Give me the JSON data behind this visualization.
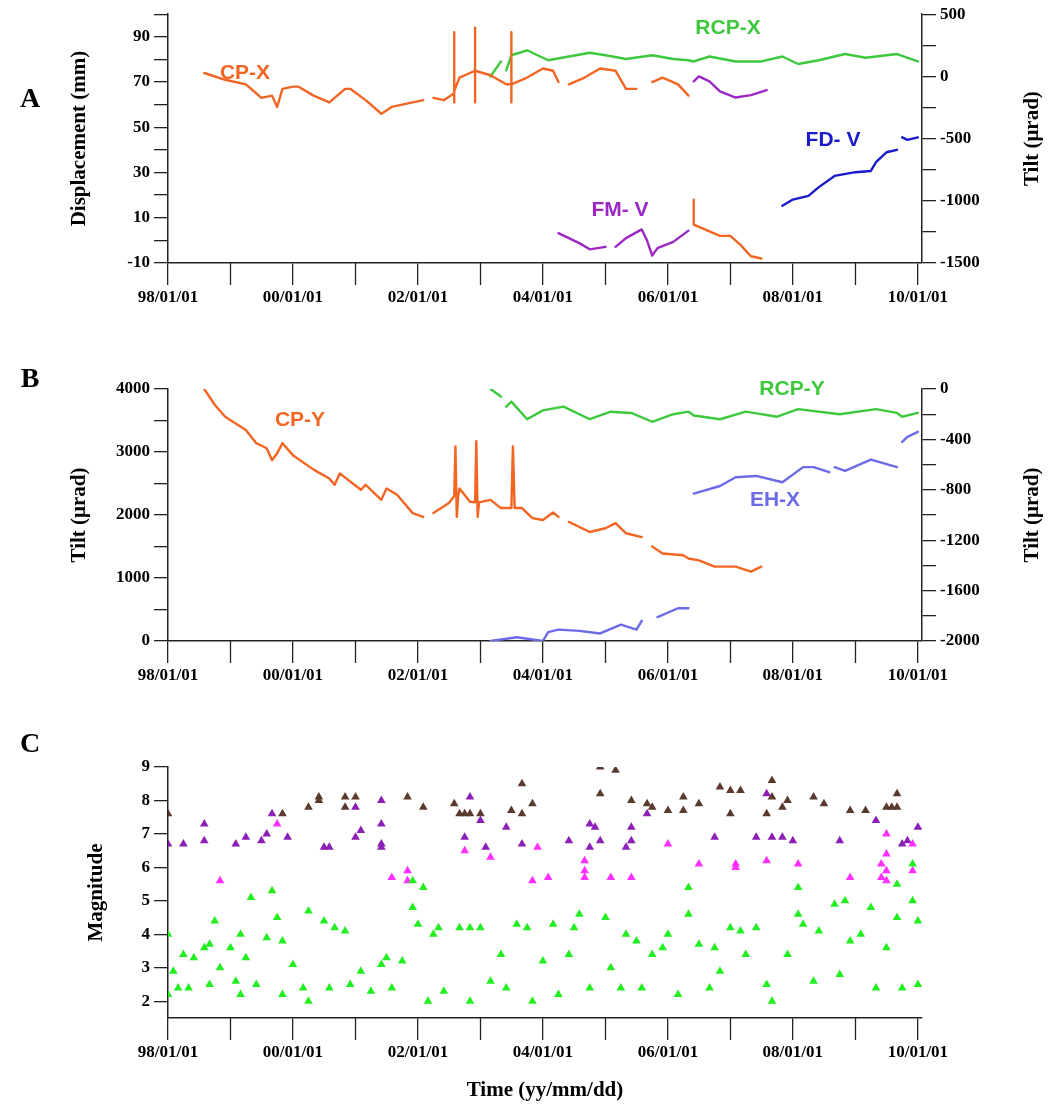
{
  "chart_data": [
    {
      "type": "line",
      "title": "A",
      "ylabel": "Displacement (mm)",
      "y2label": "Tilt (μrad)",
      "xlim": [
        "1998-01-01",
        "2010-01-25"
      ],
      "xticks": [
        {
          "value": "1998-01-01",
          "label": "98/01/01"
        },
        {
          "value": "2000-01-01",
          "label": "00/01/01"
        },
        {
          "value": "2002-01-01",
          "label": "02/01/01"
        },
        {
          "value": "2004-01-01",
          "label": "04/01/01"
        },
        {
          "value": "2006-01-01",
          "label": "06/01/01"
        },
        {
          "value": "2008-01-01",
          "label": "08/01/01"
        },
        {
          "value": "2010-01-01",
          "label": "10/01/01"
        }
      ],
      "ylim": [
        -10,
        100
      ],
      "yticks": [
        {
          "value": 100,
          "label": null
        },
        90,
        {
          "value": 80,
          "label": null
        },
        70,
        {
          "value": 60,
          "label": null
        },
        50,
        {
          "value": 40,
          "label": null
        },
        30,
        {
          "value": 20,
          "label": null
        },
        10,
        {
          "value": 0,
          "label": null
        },
        -10
      ],
      "y2lim": [
        -1500,
        500
      ],
      "y2ticks": [
        500,
        {
          "value": 250,
          "label": null
        },
        0,
        {
          "value": -250,
          "label": null
        },
        -500,
        {
          "value": -750,
          "label": null
        },
        -1000,
        {
          "value": -1250,
          "label": null
        },
        -1500
      ],
      "series": [
        {
          "name": "CP-X",
          "color": "#f26522",
          "x": [
            "1998-08",
            "1998-12",
            "1999-04",
            "1999-07",
            "1999-09",
            "1999-10",
            "1999-11",
            "2000-01",
            "2000-02",
            "2000-05",
            "2000-08",
            "2000-11",
            "2000-12",
            "2001-03",
            "2001-06",
            "2001-08",
            "2001-12",
            "2002-02",
            "2002-03",
            "2002-04",
            "2002-06",
            "2002-08",
            "2002-08",
            "2002-08",
            "2002-08",
            "2002-09",
            "2002-12",
            "2002-12",
            "2002-12",
            "2002-12",
            "2003-03",
            "2003-06",
            "2003-07",
            "2003-07",
            "2003-07",
            "2003-07",
            "2003-10",
            "2004-01",
            "2004-03",
            "2004-04",
            "2004-05",
            "2004-06",
            "2004-09",
            "2004-12",
            "2005-03",
            "2005-05",
            "2005-07",
            "2005-08",
            "2005-10",
            "2005-12",
            "2006-03",
            "2006-05",
            "2006-05-20",
            "2006-06",
            "2006-06",
            "2006-08",
            "2006-11",
            "2007-01",
            "2007-03",
            "2007-05",
            "2007-07"
          ],
          "values": [
            74,
            71,
            69,
            63,
            64,
            59,
            67,
            68,
            68,
            64,
            61,
            67,
            67,
            62,
            56,
            59,
            61,
            62,
            null,
            63,
            62,
            65,
            92,
            61,
            66,
            72,
            75,
            94,
            61,
            75,
            73,
            69,
            69,
            92,
            61,
            69,
            72,
            76,
            75,
            70,
            null,
            69,
            72,
            76,
            75,
            67,
            67,
            null,
            70,
            72,
            69,
            64,
            null,
            18,
            7,
            5,
            2,
            2,
            -2,
            -7,
            -8
          ]
        },
        {
          "name": "RCP-X",
          "color": "#3dc83d",
          "axis": "y2",
          "x": [
            "2003-03",
            "2003-05",
            "2003-05-20",
            "2003-06",
            "2003-07",
            "2003-10",
            "2003-12",
            "2004-02",
            "2004-06",
            "2004-10",
            "2005-01",
            "2005-05",
            "2005-10",
            "2006-02",
            "2006-05",
            "2006-06",
            "2006-09",
            "2007-02",
            "2007-07",
            "2007-11",
            "2008-02",
            "2008-06",
            "2008-11",
            "2009-03",
            "2009-09",
            "2010-01"
          ],
          "values": [
            0,
            120,
            null,
            50,
            170,
            210,
            170,
            130,
            160,
            190,
            170,
            140,
            170,
            140,
            130,
            120,
            160,
            120,
            120,
            160,
            100,
            130,
            180,
            150,
            180,
            120
          ]
        },
        {
          "name": "FD- V",
          "color": "#1a1acc",
          "axis": "y2",
          "x": [
            "2007-11",
            "2008-01",
            "2008-04",
            "2008-06",
            "2008-09",
            "2009-01",
            "2009-04",
            "2009-05",
            "2009-07",
            "2009-09",
            "2009-09-20",
            "2009-10",
            "2009-11",
            "2010-01"
          ],
          "values": [
            -1040,
            -990,
            -960,
            -890,
            -800,
            -770,
            -760,
            -690,
            -610,
            -590,
            null,
            -490,
            -510,
            -490
          ]
        },
        {
          "name": "FM- V",
          "color": "#9b27c4",
          "axis": "y2",
          "x": [
            "2004-04",
            "2004-08",
            "2004-10",
            "2005-01",
            "2005-02",
            "2005-03",
            "2005-05",
            "2005-08",
            "2005-09",
            "2005-10",
            "2005-11",
            "2006-02",
            "2006-05",
            "2006-05-20",
            "2006-06",
            "2006-07",
            "2006-09",
            "2006-11",
            "2007-02",
            "2007-05",
            "2007-08"
          ],
          "values": [
            -1260,
            -1340,
            -1390,
            -1370,
            null,
            -1370,
            -1300,
            -1230,
            -1320,
            -1440,
            -1380,
            -1330,
            -1240,
            null,
            -40,
            0,
            -40,
            -120,
            -170,
            -150,
            -110
          ]
        }
      ]
    },
    {
      "type": "line",
      "title": "B",
      "ylabel": "Tilt (μrad)",
      "y2label": "Tilt (μrad)",
      "xlim": [
        "1998-01-01",
        "2010-01-25"
      ],
      "xticks": [
        {
          "value": "1998-01-01",
          "label": "98/01/01"
        },
        {
          "value": "2000-01-01",
          "label": "00/01/01"
        },
        {
          "value": "2002-01-01",
          "label": "02/01/01"
        },
        {
          "value": "2004-01-01",
          "label": "04/01/01"
        },
        {
          "value": "2006-01-01",
          "label": "06/01/01"
        },
        {
          "value": "2008-01-01",
          "label": "08/01/01"
        },
        {
          "value": "2010-01-01",
          "label": "10/01/01"
        }
      ],
      "ylim": [
        0,
        4000
      ],
      "yticks": [
        0,
        {
          "value": 500,
          "label": null
        },
        1000,
        {
          "value": 1500,
          "label": null
        },
        2000,
        {
          "value": 2500,
          "label": null
        },
        3000,
        {
          "value": 3500,
          "label": null
        },
        4000
      ],
      "y2lim": [
        -2000,
        0
      ],
      "y2ticks": [
        -2000,
        {
          "value": -1800,
          "label": null
        },
        -1600,
        {
          "value": -1400,
          "label": null
        },
        -1200,
        {
          "value": -1000,
          "label": null
        },
        -800,
        {
          "value": -600,
          "label": null
        },
        -400,
        {
          "value": -200,
          "label": null
        },
        0
      ],
      "series": [
        {
          "name": "CP-Y",
          "color": "#f26522",
          "x": [
            "1998-08",
            "1998-10",
            "1998-12",
            "1999-04",
            "1999-06",
            "1999-08",
            "1999-09",
            "1999-10",
            "1999-11",
            "2000-01",
            "2000-05",
            "2000-08",
            "2000-09",
            "2000-10",
            "2001-02",
            "2001-03",
            "2001-05",
            "2001-06",
            "2001-07",
            "2001-09",
            "2001-12",
            "2002-02",
            "2002-03",
            "2002-04",
            "2002-07",
            "2002-08-01",
            "2002-08-08",
            "2002-08-16",
            "2002-08-24",
            "2002-09",
            "2002-11",
            "2002-12-01",
            "2002-12-08",
            "2002-12-16",
            "2002-12-24",
            "2003-03",
            "2003-05",
            "2003-07-01",
            "2003-07-10",
            "2003-07-20",
            "2003-09",
            "2003-11",
            "2004-01",
            "2004-03",
            "2004-04",
            "2004-05",
            "2004-06",
            "2004-10",
            "2005-01",
            "2005-03",
            "2005-05",
            "2005-08",
            "2005-09",
            "2005-10",
            "2005-12",
            "2006-04",
            "2006-05",
            "2006-07",
            "2006-10",
            "2007-02",
            "2007-05",
            "2007-07"
          ],
          "values": [
            4000,
            3750,
            3560,
            3350,
            3140,
            3060,
            2870,
            2980,
            3140,
            2950,
            2720,
            2580,
            2480,
            2660,
            2400,
            2480,
            2320,
            2240,
            2420,
            2320,
            2030,
            1970,
            null,
            2030,
            2190,
            2300,
            3090,
            1970,
            2300,
            2420,
            2210,
            2200,
            3170,
            1970,
            2200,
            2240,
            2110,
            2110,
            3090,
            2110,
            2110,
            1950,
            1920,
            2040,
            1970,
            null,
            1890,
            1730,
            1790,
            1870,
            1710,
            1650,
            null,
            1500,
            1390,
            1360,
            1310,
            1280,
            1180,
            1180,
            1100,
            1180
          ]
        },
        {
          "name": "RCP-Y",
          "color": "#3dc83d",
          "axis": "y2",
          "x": [
            "2003-03",
            "2003-05",
            "2003-05-20",
            "2003-06",
            "2003-07",
            "2003-10",
            "2004-01",
            "2004-05",
            "2004-10",
            "2005-02",
            "2005-06",
            "2005-10",
            "2006-02",
            "2006-05",
            "2006-06",
            "2006-11",
            "2007-04",
            "2007-10",
            "2008-02",
            "2008-10",
            "2009-05",
            "2009-09",
            "2009-10",
            "2010-01"
          ],
          "values": [
            0,
            -60,
            null,
            -140,
            -100,
            -240,
            -170,
            -140,
            -240,
            -180,
            -190,
            -260,
            -200,
            -180,
            -210,
            -240,
            -180,
            -220,
            -160,
            -200,
            -160,
            -190,
            -220,
            -190
          ]
        },
        {
          "name": "EH-X",
          "color": "#6b6be8",
          "axis": "y2",
          "x": [
            "2003-03",
            "2003-08",
            "2004-01",
            "2004-02",
            "2004-04",
            "2004-08",
            "2004-12",
            "2005-04",
            "2005-07",
            "2005-08",
            "2005-09",
            "2005-11",
            "2006-03",
            "2006-05",
            "2006-05-20",
            "2006-06",
            "2006-11",
            "2007-02",
            "2007-06",
            "2007-11",
            "2008-03",
            "2008-05",
            "2008-08",
            "2008-08-20",
            "2008-09",
            "2008-11",
            "2009-04",
            "2009-09",
            "2009-09-20",
            "2009-10",
            "2009-11",
            "2010-01"
          ],
          "values": [
            -2000,
            -1970,
            -2000,
            -1930,
            -1910,
            -1920,
            -1940,
            -1870,
            -1910,
            -1840,
            null,
            -1810,
            -1740,
            -1740,
            null,
            -830,
            -770,
            -700,
            -690,
            -740,
            -620,
            -620,
            -660,
            null,
            -620,
            -650,
            -560,
            -620,
            null,
            -420,
            -380,
            -340
          ]
        }
      ]
    },
    {
      "type": "scatter",
      "title": "C",
      "ylabel": "Magnitude",
      "xlabel": "Time (yy/mm/dd)",
      "marker": "triangle",
      "xlim": [
        "1998-01-01",
        "2010-01-25"
      ],
      "xticks": [
        {
          "value": "1998-01-01",
          "label": "98/01/01"
        },
        {
          "value": "2000-01-01",
          "label": "00/01/01"
        },
        {
          "value": "2002-01-01",
          "label": "02/01/01"
        },
        {
          "value": "2004-01-01",
          "label": "04/01/01"
        },
        {
          "value": "2006-01-01",
          "label": "06/01/01"
        },
        {
          "value": "2008-01-01",
          "label": "08/01/01"
        },
        {
          "value": "2010-01-01",
          "label": "10/01/01"
        }
      ],
      "ylim": [
        1.5,
        9
      ],
      "yticks": [
        2,
        3,
        4,
        5,
        6,
        7,
        8,
        9
      ],
      "series": [
        {
          "color": "#22ee22",
          "x": [
            "1998-01",
            "1998-01",
            "1998-02",
            "1998-03",
            "1998-04",
            "1998-05",
            "1998-06",
            "1998-08",
            "1998-09",
            "1998-09",
            "1998-10",
            "1998-11",
            "1999-01",
            "1999-02",
            "1999-03",
            "1999-03",
            "1999-04",
            "1999-05",
            "1999-06",
            "1999-08",
            "1999-09",
            "1999-10",
            "1999-11",
            "1999-11",
            "2000-01",
            "2000-03",
            "2000-04",
            "2000-04",
            "2000-07",
            "2000-08",
            "2000-09",
            "2000-11",
            "2000-12",
            "2001-02",
            "2001-04",
            "2001-06",
            "2001-07",
            "2001-08",
            "2001-10",
            "2001-12",
            "2001-12",
            "2002-01",
            "2002-02",
            "2002-03",
            "2002-04",
            "2002-05",
            "2002-06",
            "2002-09",
            "2002-11",
            "2002-11",
            "2003-01",
            "2003-03",
            "2003-05",
            "2003-06",
            "2003-08",
            "2003-10",
            "2003-11",
            "2004-01",
            "2004-03",
            "2004-04",
            "2004-06",
            "2004-07",
            "2004-08",
            "2004-10",
            "2005-01",
            "2005-02",
            "2005-04",
            "2005-05",
            "2005-07",
            "2005-08",
            "2005-10",
            "2005-12",
            "2006-01",
            "2006-03",
            "2006-05",
            "2006-05",
            "2006-07",
            "2006-09",
            "2006-10",
            "2006-11",
            "2007-01",
            "2007-03",
            "2007-04",
            "2007-06",
            "2007-08",
            "2007-09",
            "2007-12",
            "2008-02",
            "2008-02",
            "2008-03",
            "2008-05",
            "2008-06",
            "2008-09",
            "2008-10",
            "2008-11",
            "2008-12",
            "2009-02",
            "2009-04",
            "2009-05",
            "2009-07",
            "2009-09",
            "2009-09",
            "2009-10",
            "2009-12",
            "2009-12",
            "2010-01",
            "2010-01"
          ],
          "values": [
            4.0,
            2.2,
            2.9,
            2.4,
            3.4,
            2.4,
            3.3,
            3.6,
            3.7,
            2.5,
            4.4,
            3.0,
            3.6,
            2.6,
            4.0,
            2.2,
            3.3,
            5.1,
            2.5,
            3.9,
            5.3,
            4.5,
            3.8,
            2.2,
            3.1,
            2.4,
            4.7,
            2.0,
            4.4,
            2.4,
            4.2,
            4.1,
            2.5,
            2.9,
            2.3,
            3.1,
            3.3,
            2.4,
            3.2,
            4.8,
            5.6,
            4.3,
            5.4,
            2.0,
            4.0,
            4.2,
            2.3,
            4.2,
            4.2,
            2.0,
            4.2,
            2.6,
            3.4,
            2.4,
            4.3,
            4.2,
            2.0,
            3.2,
            4.3,
            2.2,
            3.4,
            4.2,
            4.6,
            2.4,
            4.5,
            3.0,
            2.4,
            4.0,
            3.8,
            2.4,
            3.4,
            3.6,
            4.0,
            2.2,
            5.4,
            4.6,
            3.7,
            2.4,
            3.6,
            2.9,
            4.2,
            4.1,
            3.4,
            4.2,
            2.5,
            2.0,
            3.4,
            5.4,
            4.6,
            4.3,
            2.6,
            4.1,
            4.9,
            2.8,
            5.0,
            3.8,
            4.0,
            4.8,
            2.4,
            3.6,
            5.5,
            4.5,
            2.4,
            6.1,
            5.0,
            4.4,
            2.5
          ]
        },
        {
          "color": "#ff30ff",
          "x": [
            "1998-11",
            "1999-10",
            "2001-08",
            "2001-11",
            "2001-11",
            "2002-10",
            "2003-03",
            "2003-11",
            "2003-12",
            "2004-02",
            "2004-09",
            "2004-09",
            "2004-09",
            "2005-02",
            "2005-06",
            "2006-01",
            "2006-07",
            "2007-02",
            "2007-02",
            "2007-08",
            "2008-02",
            "2008-12",
            "2009-06",
            "2009-06",
            "2009-07",
            "2009-07",
            "2009-07",
            "2009-07",
            "2009-12",
            "2009-12"
          ],
          "values": [
            5.6,
            7.3,
            5.7,
            5.9,
            5.6,
            6.5,
            6.3,
            5.6,
            6.6,
            5.7,
            5.9,
            6.2,
            5.7,
            5.7,
            5.7,
            6.7,
            6.1,
            6.1,
            6.0,
            6.2,
            6.1,
            5.7,
            6.1,
            5.7,
            7.0,
            6.4,
            5.9,
            5.6,
            6.7,
            5.9
          ]
        },
        {
          "color": "#8c1fb5",
          "x": [
            "1998-01",
            "1998-04",
            "1998-08",
            "1998-08",
            "1999-02",
            "1999-04",
            "1999-07",
            "1999-08",
            "1999-09",
            "1999-12",
            "2000-07",
            "2000-08",
            "2001-01",
            "2001-01",
            "2001-02",
            "2001-06",
            "2001-06",
            "2001-06",
            "2001-06",
            "2002-10",
            "2002-11",
            "2003-01",
            "2003-02",
            "2003-06",
            "2003-09",
            "2004-06",
            "2004-10",
            "2004-10",
            "2004-11",
            "2004-12",
            "2005-05",
            "2005-06",
            "2005-06",
            "2005-09",
            "2006-10",
            "2007-06",
            "2007-08",
            "2007-09",
            "2007-11",
            "2008-01",
            "2008-10",
            "2009-05",
            "2009-10",
            "2009-11",
            "2010-01"
          ],
          "values": [
            6.7,
            6.7,
            7.3,
            6.8,
            6.7,
            6.9,
            6.8,
            7.0,
            7.6,
            6.9,
            6.6,
            6.6,
            6.9,
            7.8,
            7.1,
            8.0,
            7.3,
            6.7,
            6.6,
            6.9,
            8.1,
            7.4,
            6.6,
            7.2,
            6.7,
            6.8,
            7.3,
            6.6,
            7.2,
            6.8,
            6.6,
            7.2,
            6.8,
            7.6,
            6.9,
            6.9,
            8.2,
            6.9,
            6.9,
            6.8,
            6.8,
            7.4,
            6.7,
            6.8,
            7.2
          ]
        },
        {
          "color": "#5a3a2c",
          "x": [
            "1998-01",
            "1999-11",
            "2000-04",
            "2000-06",
            "2000-06",
            "2000-11",
            "2000-11",
            "2001-01",
            "2001-11",
            "2002-02",
            "2002-08",
            "2002-09",
            "2002-10",
            "2002-11",
            "2003-01",
            "2003-07",
            "2003-09",
            "2003-09",
            "2003-11",
            "2004-12",
            "2004-12",
            "2005-03",
            "2005-06",
            "2005-09",
            "2005-10",
            "2006-01",
            "2006-04",
            "2006-04",
            "2006-07",
            "2006-11",
            "2007-01",
            "2007-01",
            "2007-03",
            "2007-08",
            "2007-09",
            "2007-09",
            "2007-11",
            "2007-12",
            "2008-05",
            "2008-07",
            "2008-12",
            "2009-03",
            "2009-07",
            "2009-08",
            "2009-09",
            "2009-09"
          ],
          "values": [
            7.6,
            7.6,
            7.8,
            8.0,
            8.1,
            8.1,
            7.8,
            8.1,
            8.1,
            7.8,
            7.9,
            7.6,
            7.6,
            7.6,
            7.6,
            7.7,
            8.5,
            7.6,
            7.9,
            9.0,
            8.2,
            8.9,
            8.0,
            7.9,
            7.8,
            7.7,
            7.7,
            8.1,
            7.9,
            8.4,
            8.3,
            7.6,
            8.3,
            7.6,
            8.6,
            8.1,
            7.8,
            8.0,
            8.1,
            7.9,
            7.7,
            7.7,
            7.8,
            7.8,
            8.2,
            7.8
          ]
        }
      ]
    }
  ]
}
